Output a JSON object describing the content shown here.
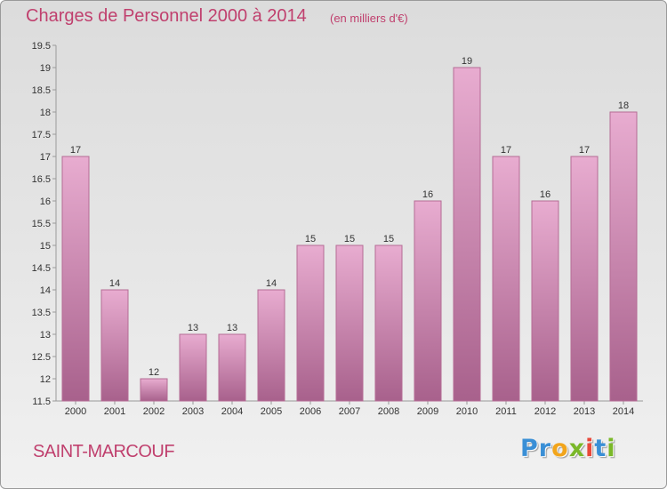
{
  "title": "Charges de Personnel 2000 à 2014",
  "subtitle": "(en milliers d'€)",
  "commune": "SAINT-MARCOUF",
  "logo": {
    "letters": [
      "P",
      "r",
      "o",
      "x",
      "i",
      "t",
      "i"
    ],
    "colors": [
      "#3a8fd6",
      "#3a8fd6",
      "#f2a51c",
      "#7ab829",
      "#e8483a",
      "#3a8fd6",
      "#7ab829"
    ]
  },
  "colors": {
    "title": "#c0406e",
    "bar_top": "#e8acd0",
    "bar_bottom": "#a8618c",
    "bar_border": "#b56c95",
    "axis": "#9a9a9a",
    "text": "#333333"
  },
  "chart_data": {
    "type": "bar",
    "categories": [
      "2000",
      "2001",
      "2002",
      "2003",
      "2004",
      "2005",
      "2006",
      "2007",
      "2008",
      "2009",
      "2010",
      "2011",
      "2012",
      "2013",
      "2014"
    ],
    "values": [
      17,
      14,
      12,
      13,
      13,
      14,
      15,
      15,
      15,
      16,
      19,
      17,
      16,
      17,
      18
    ],
    "data_labels": [
      "17",
      "14",
      "12",
      "13",
      "13",
      "14",
      "15",
      "15",
      "15",
      "16",
      "19",
      "17",
      "16",
      "17",
      "18"
    ],
    "yticks": [
      "11.5",
      "12",
      "12.5",
      "13",
      "13.5",
      "14",
      "14.5",
      "15",
      "15.5",
      "16",
      "16.5",
      "17",
      "17.5",
      "18",
      "18.5",
      "19",
      "19.5"
    ],
    "ylim": [
      11.5,
      19.5
    ],
    "grid": false,
    "legend": "none"
  }
}
